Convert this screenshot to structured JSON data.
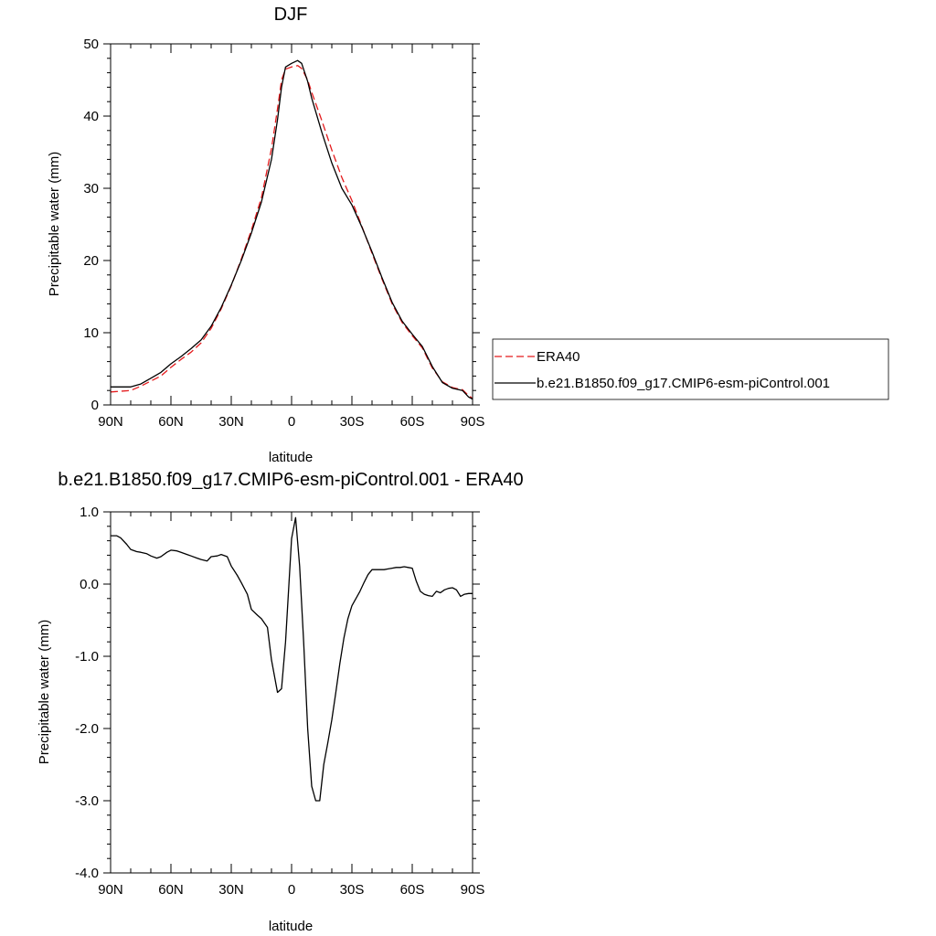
{
  "chart_data": [
    {
      "type": "line",
      "title": "DJF",
      "xlabel": "latitude",
      "ylabel": "Precipitable water (mm)",
      "xlim": [
        90,
        -90
      ],
      "ylim": [
        0,
        50
      ],
      "x_ticks": [
        90,
        60,
        30,
        0,
        -30,
        -60,
        -90
      ],
      "x_tick_labels": [
        "90N",
        "60N",
        "30N",
        "0",
        "30S",
        "60S",
        "90S"
      ],
      "y_ticks": [
        0,
        10,
        20,
        30,
        40,
        50
      ],
      "y_tick_labels": [
        "0",
        "10",
        "20",
        "30",
        "40",
        "50"
      ],
      "legend_position": "right",
      "series": [
        {
          "name": "ERA40",
          "color": "#e41a1c",
          "dash": "dashed",
          "x": [
            90,
            85,
            80,
            75,
            70,
            65,
            60,
            55,
            50,
            45,
            40,
            35,
            30,
            25,
            20,
            15,
            10,
            7,
            5,
            3,
            0,
            -3,
            -5,
            -8,
            -10,
            -15,
            -20,
            -25,
            -30,
            -35,
            -40,
            -45,
            -50,
            -55,
            -60,
            -65,
            -70,
            -75,
            -80,
            -85,
            -88,
            -90
          ],
          "y": [
            1.8,
            1.9,
            2.0,
            2.6,
            3.3,
            4.0,
            5.2,
            6.3,
            7.3,
            8.6,
            10.6,
            13.3,
            16.5,
            20.2,
            24.2,
            28.7,
            35.5,
            41.0,
            45.0,
            46.5,
            46.8,
            47.0,
            46.6,
            45.0,
            43.3,
            39.4,
            35.3,
            31.5,
            28.3,
            24.7,
            21.0,
            17.4,
            14.0,
            11.4,
            9.6,
            7.9,
            5.1,
            3.2,
            2.4,
            2.1,
            1.3,
            0.9
          ]
        },
        {
          "name": "b.e21.B1850.f09_g17.CMIP6-esm-piControl.001",
          "color": "#000000",
          "dash": "solid",
          "x": [
            90,
            85,
            80,
            75,
            70,
            65,
            60,
            55,
            50,
            45,
            40,
            35,
            30,
            25,
            20,
            15,
            10,
            7,
            5,
            3,
            0,
            -3,
            -5,
            -8,
            -10,
            -15,
            -20,
            -25,
            -30,
            -35,
            -40,
            -45,
            -50,
            -55,
            -60,
            -65,
            -70,
            -75,
            -80,
            -85,
            -88,
            -90
          ],
          "y": [
            2.5,
            2.5,
            2.5,
            2.9,
            3.7,
            4.5,
            5.7,
            6.7,
            7.8,
            9.0,
            10.9,
            13.5,
            16.6,
            20.0,
            23.8,
            28.1,
            34.0,
            39.5,
            44.0,
            46.8,
            47.3,
            47.7,
            47.3,
            44.8,
            42.5,
            37.8,
            33.5,
            30.0,
            27.7,
            24.6,
            21.2,
            17.6,
            14.2,
            11.6,
            9.8,
            8.1,
            5.3,
            3.1,
            2.3,
            2.0,
            1.1,
            0.8
          ]
        }
      ]
    },
    {
      "type": "line",
      "title": "b.e21.B1850.f09_g17.CMIP6-esm-piControl.001 - ERA40",
      "xlabel": "latitude",
      "ylabel": "Precipitable water (mm)",
      "xlim": [
        90,
        -90
      ],
      "ylim": [
        -4,
        1
      ],
      "x_ticks": [
        90,
        60,
        30,
        0,
        -30,
        -60,
        -90
      ],
      "x_tick_labels": [
        "90N",
        "60N",
        "30N",
        "0",
        "30S",
        "60S",
        "90S"
      ],
      "y_ticks": [
        1,
        0,
        -1,
        -2,
        -3,
        -4
      ],
      "y_tick_labels": [
        "1.0",
        "0.0",
        "-1.0",
        "-2.0",
        "-3.0",
        "-4.0"
      ],
      "series": [
        {
          "color": "#000000",
          "dash": "solid",
          "x": [
            90,
            87,
            85,
            82,
            80,
            77,
            75,
            72,
            70,
            67,
            65,
            62,
            60,
            57,
            55,
            52,
            50,
            47,
            45,
            42,
            40,
            37,
            35,
            32,
            30,
            27,
            25,
            22,
            20,
            17,
            15,
            12,
            10,
            7,
            5,
            3,
            0,
            -2,
            -4,
            -6,
            -8,
            -10,
            -12,
            -14,
            -16,
            -18,
            -20,
            -22,
            -24,
            -26,
            -28,
            -30,
            -32,
            -34,
            -36,
            -38,
            -40,
            -42,
            -44,
            -46,
            -48,
            -50,
            -52,
            -54,
            -56,
            -58,
            -60,
            -62,
            -64,
            -66,
            -68,
            -70,
            -72,
            -74,
            -76,
            -78,
            -80,
            -82,
            -84,
            -86,
            -88,
            -90
          ],
          "y": [
            0.67,
            0.67,
            0.64,
            0.55,
            0.48,
            0.45,
            0.44,
            0.42,
            0.39,
            0.36,
            0.38,
            0.44,
            0.47,
            0.46,
            0.44,
            0.41,
            0.39,
            0.36,
            0.34,
            0.32,
            0.38,
            0.39,
            0.41,
            0.38,
            0.25,
            0.12,
            0.02,
            -0.14,
            -0.35,
            -0.43,
            -0.48,
            -0.6,
            -1.05,
            -1.5,
            -1.45,
            -0.8,
            0.63,
            0.92,
            0.25,
            -0.8,
            -2.0,
            -2.8,
            -3.0,
            -3.0,
            -2.5,
            -2.2,
            -1.88,
            -1.5,
            -1.1,
            -0.75,
            -0.48,
            -0.3,
            -0.2,
            -0.1,
            0.02,
            0.13,
            0.2,
            0.2,
            0.2,
            0.2,
            0.21,
            0.22,
            0.23,
            0.23,
            0.24,
            0.23,
            0.22,
            0.04,
            -0.1,
            -0.14,
            -0.16,
            -0.17,
            -0.1,
            -0.12,
            -0.08,
            -0.06,
            -0.05,
            -0.08,
            -0.17,
            -0.14,
            -0.13,
            -0.13
          ]
        }
      ]
    }
  ]
}
